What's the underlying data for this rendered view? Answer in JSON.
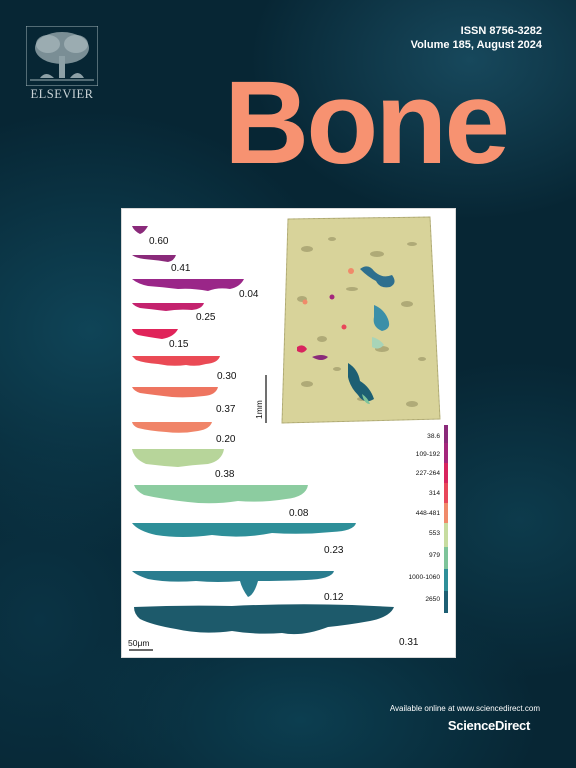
{
  "cover": {
    "publisher": "ELSEVIER",
    "issn": "ISSN 8756-3282",
    "volume": "Volume 185, August 2024",
    "journal": "Bone",
    "available_online": "Available online at www.sciencedirect.com",
    "platform": "ScienceDirect",
    "accent_color": "#f79271"
  },
  "figure": {
    "ratios": [
      "0.60",
      "0.41",
      "0.04",
      "0.25",
      "0.15",
      "0.30",
      "0.37",
      "0.20",
      "0.38",
      "0.08",
      "0.23",
      "0.12",
      "0.31"
    ],
    "legend": [
      "38.6",
      "109-192",
      "227-264",
      "314",
      "448-481",
      "553",
      "979",
      "1000-1060",
      "2650"
    ],
    "legend_colors": [
      "#8a2a7a",
      "#a4267c",
      "#d8245e",
      "#e8475a",
      "#f08a6a",
      "#c7dca0",
      "#7ec49a",
      "#2e8f99",
      "#1d5f73"
    ],
    "scale_main": "1mm",
    "scale_detail": "50μm"
  }
}
